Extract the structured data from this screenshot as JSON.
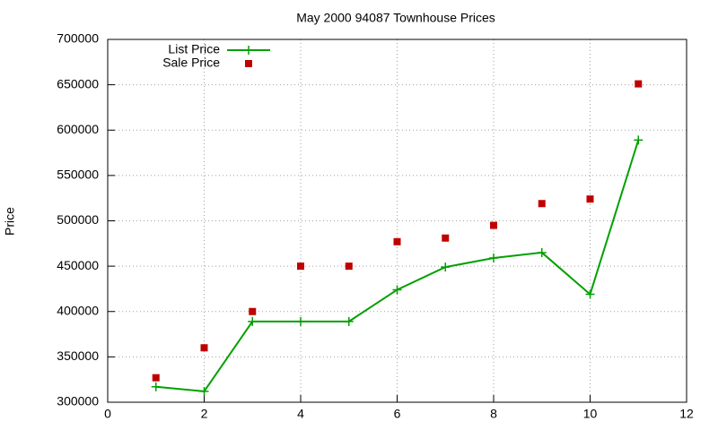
{
  "chart_data": {
    "type": "line",
    "title": "May 2000 94087 Townhouse Prices",
    "y_label": "Price",
    "x": [
      1,
      2,
      3,
      4,
      5,
      6,
      7,
      8,
      9,
      10,
      11
    ],
    "series": [
      {
        "name": "List Price",
        "color": "#00a000",
        "style": "linespoints",
        "values": [
          317000,
          312000,
          389000,
          389000,
          389000,
          424000,
          449000,
          459000,
          465000,
          419000,
          589000
        ]
      },
      {
        "name": "Sale Price",
        "color": "#c00000",
        "style": "points",
        "values": [
          327000,
          360000,
          400000,
          450000,
          450000,
          477000,
          481000,
          495000,
          519000,
          524000,
          651000
        ]
      }
    ],
    "xlim": [
      0,
      12
    ],
    "xticks": [
      0,
      2,
      4,
      6,
      8,
      10,
      12
    ],
    "ylim": [
      300000,
      700000
    ],
    "yticks": [
      300000,
      350000,
      400000,
      450000,
      500000,
      550000,
      600000,
      650000,
      700000
    ],
    "grid": true,
    "legend": "top-left"
  }
}
